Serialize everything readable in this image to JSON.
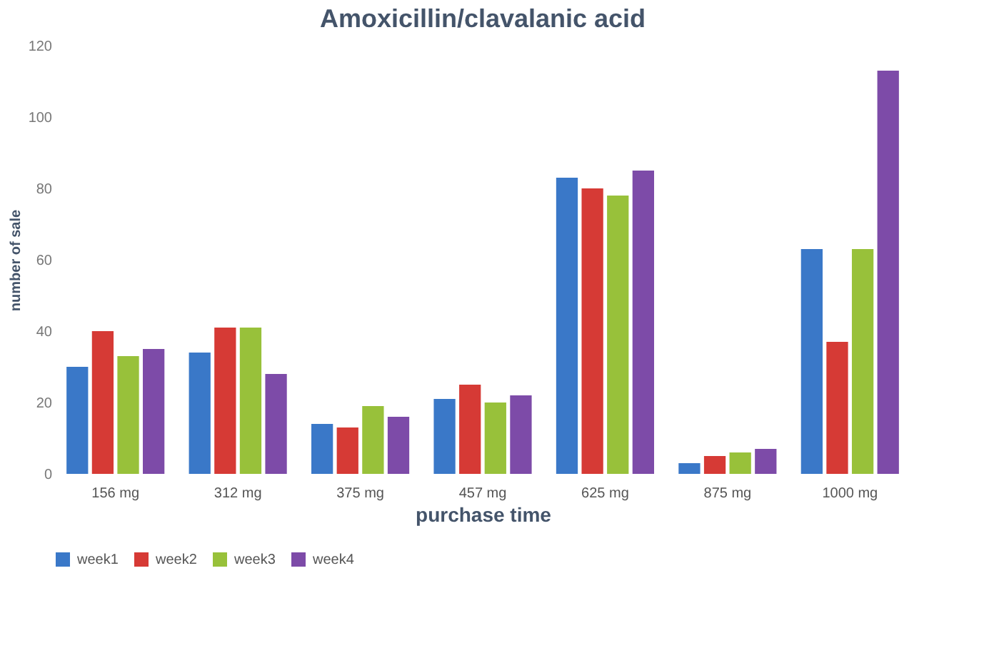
{
  "chart_data": {
    "type": "bar",
    "title": "Amoxicillin/clavalanic acid",
    "xlabel": "purchase time",
    "ylabel": "number of sale",
    "categories": [
      "156 mg",
      "312 mg",
      "375 mg",
      "457 mg",
      "625 mg",
      "875 mg",
      "1000 mg"
    ],
    "series": [
      {
        "name": "week1",
        "color": "#3a78c8",
        "values": [
          30,
          34,
          14,
          21,
          83,
          3,
          63
        ]
      },
      {
        "name": "week2",
        "color": "#d63a35",
        "values": [
          40,
          41,
          13,
          25,
          80,
          5,
          37
        ]
      },
      {
        "name": "week3",
        "color": "#98c13a",
        "values": [
          33,
          41,
          19,
          20,
          78,
          6,
          63
        ]
      },
      {
        "name": "week4",
        "color": "#7d4ba8",
        "values": [
          35,
          28,
          16,
          22,
          85,
          7,
          113
        ]
      }
    ],
    "ylim": [
      0,
      120
    ],
    "yticks": [
      0,
      20,
      40,
      60,
      80,
      100,
      120
    ],
    "grid": false,
    "legend": "bottom"
  }
}
